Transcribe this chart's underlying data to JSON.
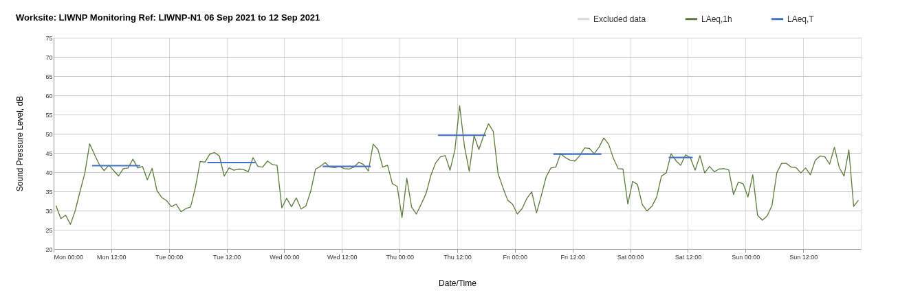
{
  "chart_data": {
    "type": "line",
    "title": "Worksite: LIWNP    Monitoring Ref: LIWNP-N1     06 Sep 2021 to 12 Sep 2021",
    "xlabel": "Date/Time",
    "ylabel": "Sound Pressure Level, dB",
    "xlim": [
      "2021-09-06T00:00",
      "2021-09-13T00:00"
    ],
    "xticks": [
      {
        "value": "2021-09-06T00:00",
        "label": "Mon 00:00"
      },
      {
        "value": "2021-09-06T12:00",
        "label": "Mon 12:00"
      },
      {
        "value": "2021-09-07T00:00",
        "label": "Tue 00:00"
      },
      {
        "value": "2021-09-07T12:00",
        "label": "Tue 12:00"
      },
      {
        "value": "2021-09-08T00:00",
        "label": "Wed 00:00"
      },
      {
        "value": "2021-09-08T12:00",
        "label": "Wed 12:00"
      },
      {
        "value": "2021-09-09T00:00",
        "label": "Thu 00:00"
      },
      {
        "value": "2021-09-09T12:00",
        "label": "Thu 12:00"
      },
      {
        "value": "2021-09-10T00:00",
        "label": "Fri 00:00"
      },
      {
        "value": "2021-09-10T12:00",
        "label": "Fri 12:00"
      },
      {
        "value": "2021-09-11T00:00",
        "label": "Sat 00:00"
      },
      {
        "value": "2021-09-11T12:00",
        "label": "Sat 12:00"
      },
      {
        "value": "2021-09-12T00:00",
        "label": "Sun 00:00"
      },
      {
        "value": "2021-09-12T12:00",
        "label": "Sun 12:00"
      }
    ],
    "ylim": [
      20,
      75
    ],
    "yticks": [
      20,
      25,
      30,
      35,
      40,
      45,
      50,
      55,
      60,
      65,
      70,
      75
    ],
    "grid": true,
    "legend": "top right",
    "series": [
      {
        "name": "Excluded data",
        "color": "#d9d9d9"
      },
      {
        "name": "LAeq,1h",
        "color": "#5a7a3a",
        "x": [
          "2021-09-06T00:30",
          "2021-09-06T01:30",
          "2021-09-06T02:30",
          "2021-09-06T03:30",
          "2021-09-06T04:30",
          "2021-09-06T05:30",
          "2021-09-06T06:30",
          "2021-09-06T07:30",
          "2021-09-06T08:30",
          "2021-09-06T09:30",
          "2021-09-06T10:30",
          "2021-09-06T11:30",
          "2021-09-06T12:30",
          "2021-09-06T13:30",
          "2021-09-06T14:30",
          "2021-09-06T15:30",
          "2021-09-06T16:30",
          "2021-09-06T17:30",
          "2021-09-06T18:30",
          "2021-09-06T19:30",
          "2021-09-06T20:30",
          "2021-09-06T21:30",
          "2021-09-06T22:30",
          "2021-09-06T23:30",
          "2021-09-07T00:30",
          "2021-09-07T01:30",
          "2021-09-07T02:30",
          "2021-09-07T03:30",
          "2021-09-07T04:30",
          "2021-09-07T05:30",
          "2021-09-07T06:30",
          "2021-09-07T07:30",
          "2021-09-07T08:30",
          "2021-09-07T09:30",
          "2021-09-07T10:30",
          "2021-09-07T11:30",
          "2021-09-07T12:30",
          "2021-09-07T13:30",
          "2021-09-07T14:30",
          "2021-09-07T15:30",
          "2021-09-07T16:30",
          "2021-09-07T17:30",
          "2021-09-07T18:30",
          "2021-09-07T19:30",
          "2021-09-07T20:30",
          "2021-09-07T21:30",
          "2021-09-07T22:30",
          "2021-09-07T23:30",
          "2021-09-08T00:30",
          "2021-09-08T01:30",
          "2021-09-08T02:30",
          "2021-09-08T03:30",
          "2021-09-08T04:30",
          "2021-09-08T05:30",
          "2021-09-08T06:30",
          "2021-09-08T07:30",
          "2021-09-08T08:30",
          "2021-09-08T09:30",
          "2021-09-08T10:30",
          "2021-09-08T11:30",
          "2021-09-08T12:30",
          "2021-09-08T13:30",
          "2021-09-08T14:30",
          "2021-09-08T15:30",
          "2021-09-08T16:30",
          "2021-09-08T17:30",
          "2021-09-08T18:30",
          "2021-09-08T19:30",
          "2021-09-08T20:30",
          "2021-09-08T21:30",
          "2021-09-08T22:30",
          "2021-09-08T23:30",
          "2021-09-09T00:30",
          "2021-09-09T01:30",
          "2021-09-09T02:30",
          "2021-09-09T03:30",
          "2021-09-09T04:30",
          "2021-09-09T05:30",
          "2021-09-09T06:30",
          "2021-09-09T07:30",
          "2021-09-09T08:30",
          "2021-09-09T09:30",
          "2021-09-09T10:30",
          "2021-09-09T11:30",
          "2021-09-09T12:30",
          "2021-09-09T13:30",
          "2021-09-09T14:30",
          "2021-09-09T15:30",
          "2021-09-09T16:30",
          "2021-09-09T17:30",
          "2021-09-09T18:30",
          "2021-09-09T19:30",
          "2021-09-09T20:30",
          "2021-09-09T21:30",
          "2021-09-09T22:30",
          "2021-09-09T23:30",
          "2021-09-10T00:30",
          "2021-09-10T01:30",
          "2021-09-10T02:30",
          "2021-09-10T03:30",
          "2021-09-10T04:30",
          "2021-09-10T05:30",
          "2021-09-10T06:30",
          "2021-09-10T07:30",
          "2021-09-10T08:30",
          "2021-09-10T09:30",
          "2021-09-10T10:30",
          "2021-09-10T11:30",
          "2021-09-10T12:30",
          "2021-09-10T13:30",
          "2021-09-10T14:30",
          "2021-09-10T15:30",
          "2021-09-10T16:30",
          "2021-09-10T17:30",
          "2021-09-10T18:30",
          "2021-09-10T19:30",
          "2021-09-10T20:30",
          "2021-09-10T21:30",
          "2021-09-10T22:30",
          "2021-09-10T23:30",
          "2021-09-11T00:30",
          "2021-09-11T01:30",
          "2021-09-11T02:30",
          "2021-09-11T03:30",
          "2021-09-11T04:30",
          "2021-09-11T05:30",
          "2021-09-11T06:30",
          "2021-09-11T07:30",
          "2021-09-11T08:30",
          "2021-09-11T09:30",
          "2021-09-11T10:30",
          "2021-09-11T11:30",
          "2021-09-11T12:30",
          "2021-09-11T13:30",
          "2021-09-11T14:30",
          "2021-09-11T15:30",
          "2021-09-11T16:30",
          "2021-09-11T17:30",
          "2021-09-11T18:30",
          "2021-09-11T19:30",
          "2021-09-11T20:30",
          "2021-09-11T21:30",
          "2021-09-11T22:30",
          "2021-09-11T23:30",
          "2021-09-12T00:30",
          "2021-09-12T01:30",
          "2021-09-12T02:30",
          "2021-09-12T03:30",
          "2021-09-12T04:30",
          "2021-09-12T05:30",
          "2021-09-12T06:30",
          "2021-09-12T07:30",
          "2021-09-12T08:30",
          "2021-09-12T09:30",
          "2021-09-12T10:30",
          "2021-09-12T11:30",
          "2021-09-12T12:30",
          "2021-09-12T13:30",
          "2021-09-12T14:30",
          "2021-09-12T15:30",
          "2021-09-12T16:30",
          "2021-09-12T17:30",
          "2021-09-12T18:30",
          "2021-09-12T19:30",
          "2021-09-12T20:30",
          "2021-09-12T21:30",
          "2021-09-12T22:30",
          "2021-09-12T23:30"
        ],
        "values": [
          31.3,
          27.9,
          28.8,
          26.4,
          30.0,
          35.0,
          39.8,
          47.4,
          44.6,
          42.0,
          40.4,
          41.8,
          40.4,
          39.0,
          40.9,
          41.1,
          43.4,
          41.1,
          41.5,
          38.0,
          41.0,
          35.2,
          33.4,
          32.6,
          31.0,
          31.7,
          29.7,
          30.5,
          30.9,
          36.0,
          42.8,
          42.6,
          44.7,
          45.1,
          44.2,
          39.0,
          41.1,
          40.5,
          40.8,
          40.7,
          40.1,
          43.8,
          41.5,
          41.3,
          42.9,
          42.0,
          41.8,
          30.7,
          33.2,
          31.0,
          33.3,
          30.4,
          31.2,
          35.0,
          40.8,
          41.5,
          42.5,
          41.3,
          41.2,
          41.5,
          40.9,
          40.8,
          41.3,
          42.6,
          42.0,
          40.3,
          47.3,
          45.9,
          41.3,
          41.8,
          37.0,
          36.3,
          28.2,
          38.4,
          30.9,
          29.1,
          31.7,
          34.4,
          39.1,
          42.4,
          44.0,
          44.3,
          40.5,
          45.7,
          57.3,
          46.7,
          40.2,
          49.5,
          45.9,
          49.5,
          52.6,
          50.6,
          39.6,
          36.0,
          32.7,
          31.7,
          29.1,
          30.5,
          33.2,
          34.9,
          29.4,
          33.9,
          38.8,
          41.1,
          41.3,
          44.8,
          43.8,
          43.1,
          42.9,
          44.3,
          46.3,
          46.2,
          44.8,
          46.5,
          48.9,
          47.3,
          43.6,
          40.9,
          40.8,
          31.7,
          37.6,
          36.8,
          31.6,
          29.9,
          31.1,
          33.5,
          39.0,
          39.8,
          44.8,
          43.0,
          41.8,
          44.5,
          43.8,
          40.5,
          44.3,
          39.8,
          41.5,
          40.1,
          40.8,
          40.9,
          40.6,
          34.2,
          37.4,
          37.0,
          33.5,
          39.3,
          28.8,
          27.5,
          28.6,
          31.3,
          39.8,
          42.3,
          42.3,
          41.3,
          41.2,
          39.8,
          41.1,
          39.3,
          43.1,
          44.2,
          44.0,
          42.1,
          46.5,
          41.2,
          39.0,
          45.8,
          31.1,
          32.7
        ]
      },
      {
        "name": "LAeq,T",
        "color": "#4472c4",
        "x": [
          "2021-09-06T08:00",
          "2021-09-06T18:00",
          "2021-09-07T01:00",
          "2021-09-07T08:00",
          "2021-09-07T18:00",
          "2021-09-08T01:00",
          "2021-09-08T08:00",
          "2021-09-08T18:00",
          "2021-09-09T01:00",
          "2021-09-09T08:00",
          "2021-09-09T18:00",
          "2021-09-10T01:00",
          "2021-09-10T08:00",
          "2021-09-10T18:00",
          "2021-09-11T01:00",
          "2021-09-11T08:00",
          "2021-09-11T13:00"
        ],
        "values": [
          41.7,
          41.7,
          null,
          42.5,
          42.5,
          null,
          41.5,
          41.5,
          null,
          49.6,
          49.6,
          null,
          44.7,
          44.7,
          null,
          43.8,
          43.8
        ]
      }
    ]
  }
}
